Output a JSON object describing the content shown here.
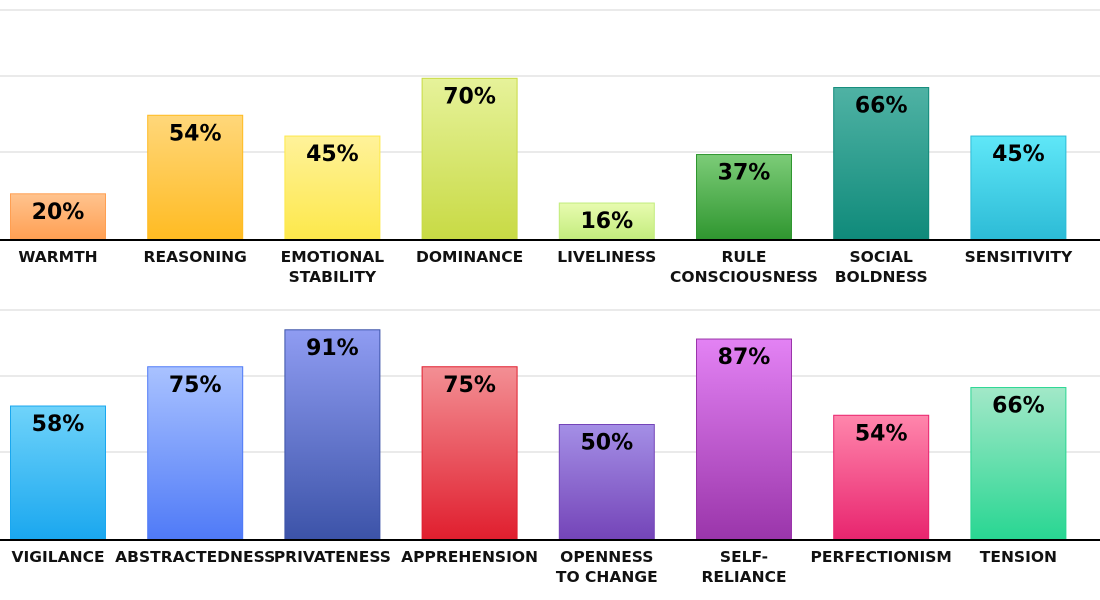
{
  "chart_data": [
    {
      "type": "bar",
      "categories": [
        "WARMTH",
        "REASONING",
        "EMOTIONAL STABILITY",
        "DOMINANCE",
        "LIVELINESS",
        "RULE CONSCIOUSNESS",
        "SOCIAL BOLDNESS",
        "SENSITIVITY"
      ],
      "category_lines": [
        [
          "WARMTH"
        ],
        [
          "REASONING"
        ],
        [
          "EMOTIONAL",
          "STABILITY"
        ],
        [
          "DOMINANCE"
        ],
        [
          "LIVELINESS"
        ],
        [
          "RULE",
          "CONSCIOUSNESS"
        ],
        [
          "SOCIAL",
          "BOLDNESS"
        ],
        [
          "SENSITIVITY"
        ]
      ],
      "values": [
        20,
        54,
        45,
        70,
        16,
        37,
        66,
        45
      ],
      "value_labels": [
        "20%",
        "54%",
        "45%",
        "70%",
        "16%",
        "37%",
        "66%",
        "45%"
      ],
      "colors": [
        [
          "#ffc38e",
          "#ff9f52"
        ],
        [
          "#ffd77a",
          "#ffbb22"
        ],
        [
          "#fff29a",
          "#fde84a"
        ],
        [
          "#e6f29a",
          "#c8da44"
        ],
        [
          "#e8fbb0",
          "#c2ec7c"
        ],
        [
          "#7ccc78",
          "#2f962f"
        ],
        [
          "#4fb2a4",
          "#0f8a7a"
        ],
        [
          "#5fe7f8",
          "#2cbbd6"
        ]
      ],
      "ylim": [
        0,
        100
      ],
      "grid": true
    },
    {
      "type": "bar",
      "categories": [
        "VIGILANCE",
        "ABSTRACTEDNESS",
        "PRIVATENESS",
        "APPREHENSION",
        "OPENNESS TO CHANGE",
        "SELF-RELIANCE",
        "PERFECTIONISM",
        "TENSION"
      ],
      "category_lines": [
        [
          "VIGILANCE"
        ],
        [
          "ABSTRACTEDNESS"
        ],
        [
          "PRIVATENESS"
        ],
        [
          "APPREHENSION"
        ],
        [
          "OPENNESS",
          "TO CHANGE"
        ],
        [
          "SELF-",
          "RELIANCE"
        ],
        [
          "PERFECTIONISM"
        ],
        [
          "TENSION"
        ]
      ],
      "values": [
        58,
        75,
        91,
        75,
        50,
        87,
        54,
        66
      ],
      "value_labels": [
        "58%",
        "75%",
        "91%",
        "75%",
        "50%",
        "87%",
        "54%",
        "66%"
      ],
      "colors": [
        [
          "#6fd3fa",
          "#1aa7ef"
        ],
        [
          "#a9c2ff",
          "#4f7af7"
        ],
        [
          "#8f9cf2",
          "#3c53a8"
        ],
        [
          "#f38f94",
          "#e01e2e"
        ],
        [
          "#a48fe6",
          "#7444b8"
        ],
        [
          "#e382f4",
          "#9a35aa"
        ],
        [
          "#ff86ac",
          "#e8246e"
        ],
        [
          "#a2e8c8",
          "#28d692"
        ]
      ],
      "ylim": [
        0,
        100
      ],
      "grid": true
    }
  ]
}
